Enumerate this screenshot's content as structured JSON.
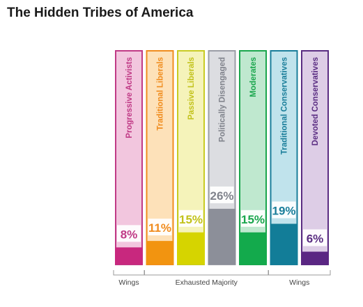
{
  "title": "The Hidden Tribes of America",
  "chart_data": {
    "type": "bar",
    "title": "The Hidden Tribes of America",
    "ylim": [
      0,
      100
    ],
    "categories": [
      "Progressive Activists",
      "Traditional Liberals",
      "Passive Liberals",
      "Politically Disengaged",
      "Moderates",
      "Traditional Conservatives",
      "Devoted Conservatives"
    ],
    "values": [
      8,
      11,
      15,
      26,
      15,
      19,
      6
    ],
    "value_labels": [
      "8%",
      "11%",
      "15%",
      "26%",
      "15%",
      "19%",
      "6%"
    ],
    "colors": {
      "border": [
        "#c03a86",
        "#f08c1e",
        "#c8cb22",
        "#9a9da6",
        "#1aa64d",
        "#1a7e9a",
        "#5a2d82"
      ],
      "fill": [
        "#c8287e",
        "#f29410",
        "#d6d400",
        "#8c8f99",
        "#13aa4c",
        "#127d98",
        "#5a2683"
      ],
      "light": [
        "#f2c6de",
        "#fde1b9",
        "#f5f3ba",
        "#dcdde1",
        "#bfe8cf",
        "#c0e3ec",
        "#ddcde6"
      ],
      "text": [
        "#c03a86",
        "#f08c1e",
        "#c2c21a",
        "#80838c",
        "#1aa64d",
        "#1a7e9a",
        "#5a2d82"
      ]
    },
    "groups": [
      {
        "label": "Wings",
        "start": 0,
        "end": 0
      },
      {
        "label": "Exhausted Majority",
        "start": 1,
        "end": 4
      },
      {
        "label": "Wings",
        "start": 5,
        "end": 6
      }
    ]
  }
}
